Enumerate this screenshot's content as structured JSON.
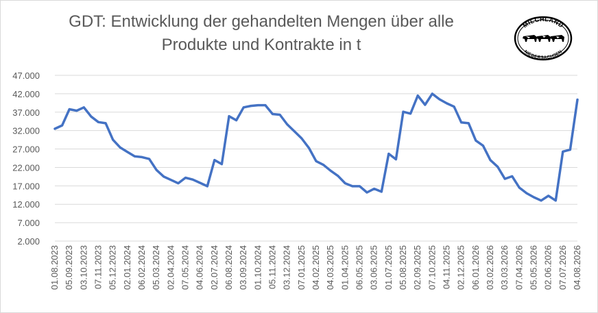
{
  "chart_data": {
    "type": "line",
    "title_line1": "GDT: Entwicklung der gehandelten Mengen über alle",
    "title_line2": "Produkte und Kontrakte in t",
    "xlabel": "",
    "ylabel": "",
    "ylim": [
      2000,
      47000
    ],
    "y_ticks": [
      "2.000",
      "7.000",
      "12.000",
      "17.000",
      "22.000",
      "27.000",
      "32.000",
      "37.000",
      "42.000",
      "47.000"
    ],
    "x_tick_labels": [
      "01.08.2023",
      "05.09.2023",
      "03.10.2023",
      "07.11.2023",
      "05.12.2023",
      "02.01.2024",
      "06.02.2024",
      "05.03.2024",
      "02.04.2024",
      "07.05.2024",
      "04.06.2024",
      "02.07.2024",
      "06.08.2024",
      "03.09.2024",
      "01.10.2024",
      "05.11.2024",
      "03.12.2024",
      "07.01.2025",
      "04.02.2025",
      "04.03.2025",
      "01.04.2025",
      "06.05.2025",
      "03.06.2025",
      "01.07.2025",
      "05.08.2025",
      "02.09.2025",
      "07.10.2025",
      "04.11.2025",
      "02.12.2025",
      "06.01.2026",
      "03.02.2026",
      "03.03.2026",
      "07.04.2026",
      "05.05.2026",
      "02.06.2026",
      "07.07.2026",
      "04.08.2026"
    ],
    "grid": "horizontal",
    "line_color": "#4472c4",
    "series": [
      {
        "values": [
          32500,
          33400,
          37800,
          37400,
          38300,
          35800,
          34300,
          34000,
          29500,
          27400,
          26200,
          25000,
          24800,
          24300,
          21300,
          19500,
          18600,
          17700,
          19200,
          18700,
          17800,
          16900,
          24000,
          22900,
          35900,
          34800,
          38300,
          38700,
          38900,
          38900,
          36500,
          36300,
          33700,
          31800,
          29900,
          27300,
          23700,
          22700,
          21100,
          19700,
          17700,
          16900,
          16900,
          15200,
          16200,
          15400,
          25700,
          24200,
          37100,
          36600,
          41500,
          39000,
          42000,
          40500,
          39400,
          38500,
          34200,
          34000,
          29300,
          27900,
          24000,
          22200,
          18900,
          19600,
          16500,
          15000,
          13900,
          13000,
          14300,
          13000,
          26300,
          26800,
          40400
        ]
      }
    ]
  },
  "logo": {
    "top_text": "MILCHLAND",
    "bottom_text": "NIEDERSACHSEN"
  }
}
